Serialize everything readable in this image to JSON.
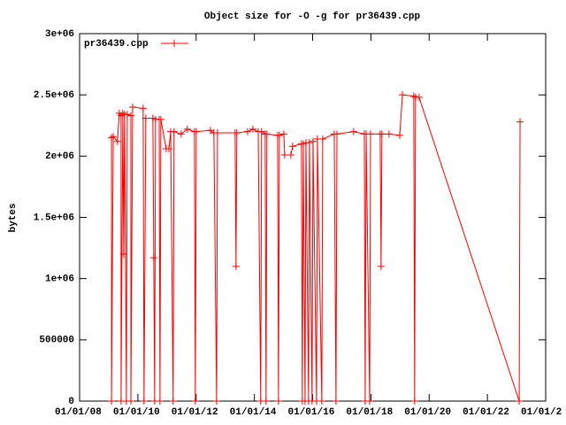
{
  "chart_data": {
    "type": "line",
    "title": "Object size for -O -g for pr36439.cpp",
    "ylabel": "bytes",
    "legend": "top-left",
    "x": [
      "2009-02-04",
      "2009-02-04",
      "2009-02-26",
      "2009-04-20",
      "2009-05-12",
      "2009-06-04",
      "2009-06-04",
      "2009-06-26",
      "2009-07-07",
      "2009-07-18",
      "2009-08-10",
      "2009-08-21",
      "2009-10-05",
      "2009-10-05",
      "2009-10-27",
      "2010-03-08",
      "2010-03-19",
      "2010-04-10",
      "2010-07-08",
      "2010-07-19",
      "2010-07-30",
      "2010-08-10",
      "2010-09-25",
      "2010-10-05",
      "2010-10-16",
      "2010-12-22",
      "2011-01-25",
      "2011-02-16",
      "2011-03-19",
      "2011-03-30",
      "2011-06-27",
      "2011-09-13",
      "2011-12-11",
      "2011-12-22",
      "2012-01-03",
      "2012-06-28",
      "2012-08-11",
      "2012-09-14",
      "2012-09-25",
      "2013-05-04",
      "2013-05-15",
      "2013-05-26",
      "2013-10-07",
      "2013-12-13",
      "2014-02-18",
      "2014-03-21",
      "2014-04-01",
      "2014-05-16",
      "2014-05-27",
      "2014-06-07",
      "2014-10-19",
      "2014-10-30",
      "2014-11-10",
      "2015-01-05",
      "2015-01-16",
      "2015-04-03",
      "2015-04-25",
      "2015-08-14",
      "2015-08-25",
      "2015-09-06",
      "2015-09-28",
      "2015-10-09",
      "2015-11-11",
      "2015-11-22",
      "2015-12-25",
      "2016-01-06",
      "2016-02-19",
      "2016-03-01",
      "2016-04-25",
      "2016-05-06",
      "2016-09-28",
      "2016-10-20",
      "2016-11-01",
      "2017-05-29",
      "2017-10-10",
      "2017-10-21",
      "2017-11-02",
      "2017-12-16",
      "2017-12-27",
      "2018-04-27",
      "2018-05-08",
      "2018-05-19",
      "2018-08-16",
      "2018-12-28",
      "2019-01-31",
      "2019-06-22",
      "2019-07-03",
      "2019-07-14",
      "2019-08-28",
      "2023-02-03",
      "2023-02-14"
    ],
    "series": [
      {
        "name": "pr36439.cpp",
        "color": "#ff0000",
        "values": [
          2150000,
          0,
          2160000,
          2120000,
          2350000,
          2330000,
          0,
          2350000,
          1200000,
          2340000,
          0,
          2340000,
          2330000,
          0,
          2400000,
          2390000,
          0,
          2310000,
          2310000,
          1170000,
          0,
          2300000,
          2300000,
          0,
          2300000,
          2060000,
          2060000,
          2200000,
          0,
          2200000,
          2180000,
          2220000,
          2200000,
          0,
          2200000,
          2210000,
          2190000,
          0,
          2190000,
          2190000,
          1100000,
          2190000,
          2200000,
          2220000,
          2200000,
          0,
          2200000,
          2180000,
          0,
          2180000,
          2170000,
          0,
          2170000,
          2180000,
          2010000,
          2010000,
          2080000,
          2100000,
          0,
          2100000,
          0,
          2110000,
          0,
          2110000,
          0,
          2120000,
          0,
          2140000,
          0,
          2140000,
          2180000,
          0,
          2180000,
          2200000,
          2180000,
          0,
          2180000,
          0,
          2180000,
          2180000,
          1100000,
          2180000,
          2180000,
          2170000,
          2500000,
          2490000,
          0,
          2480000,
          2480000,
          0,
          2280000
        ]
      }
    ],
    "xlim": [
      "2008-01-01",
      "2024-01-01"
    ],
    "xticks": [
      "01/01/08",
      "01/01/10",
      "01/01/12",
      "01/01/14",
      "01/01/16",
      "01/01/18",
      "01/01/20",
      "01/01/22",
      {
        "value": "2024-01-01",
        "label": "01/01/2"
      }
    ],
    "ylim": [
      0,
      3000000
    ],
    "yticks": [
      0,
      500000,
      {
        "value": 1000000,
        "label": "1e+06"
      },
      {
        "value": 1500000,
        "label": "1.5e+06"
      },
      {
        "value": 2000000,
        "label": "2e+06"
      },
      {
        "value": 2500000,
        "label": "2.5e+06"
      },
      {
        "value": 3000000,
        "label": "3e+06"
      }
    ],
    "grid": false
  }
}
